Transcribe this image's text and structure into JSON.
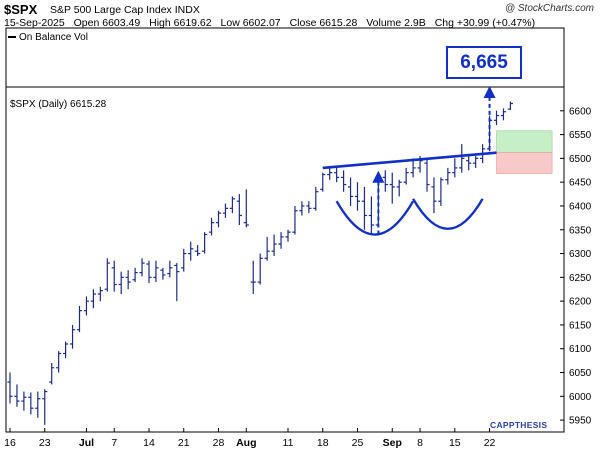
{
  "header": {
    "ticker": "$SPX",
    "company": "S&P 500 Large Cap Index",
    "exchange": "INDX",
    "source": "@ StockCharts.com",
    "date": "15-Sep-2025",
    "open": "Open 6603.49",
    "high": "High 6619.62",
    "low": "Low 6602.07",
    "close": "Close 6615.28",
    "volume": "Volume 2.9B",
    "chg": "Chg +30.99 (+0.47%)"
  },
  "indicator_label": "On Balance Vol",
  "legend_label": "$SPX (Daily) 6615.28",
  "callout_label": "6,665",
  "brand_label": "CAPPTHESIS",
  "colors": {
    "bars": "#1a2b8c",
    "annotation": "#1030c8",
    "green_zone": "#c6efc6",
    "red_zone": "#f8c9c9"
  },
  "chart_data": {
    "type": "ohlc",
    "ylim": [
      5925,
      6650
    ],
    "yticks": [
      5950,
      6000,
      6050,
      6100,
      6150,
      6200,
      6250,
      6300,
      6350,
      6400,
      6450,
      6500,
      6550,
      6600
    ],
    "xtick_labels": [
      {
        "label": "16",
        "day": 0
      },
      {
        "label": "23",
        "day": 5
      },
      {
        "label": "Jul",
        "day": 11
      },
      {
        "label": "7",
        "day": 15
      },
      {
        "label": "14",
        "day": 20
      },
      {
        "label": "21",
        "day": 25
      },
      {
        "label": "28",
        "day": 30
      },
      {
        "label": "Aug",
        "day": 34
      },
      {
        "label": "11",
        "day": 40
      },
      {
        "label": "18",
        "day": 45
      },
      {
        "label": "25",
        "day": 50
      },
      {
        "label": "Sep",
        "day": 55
      },
      {
        "label": "8",
        "day": 59
      },
      {
        "label": "15",
        "day": 64
      },
      {
        "label": "22",
        "day": 69
      }
    ],
    "bars": [
      {
        "day": 0,
        "o": 6030,
        "h": 6050,
        "l": 5985,
        "c": 6000
      },
      {
        "day": 1,
        "o": 6000,
        "h": 6025,
        "l": 5978,
        "c": 5990
      },
      {
        "day": 2,
        "o": 5990,
        "h": 6010,
        "l": 5970,
        "c": 5998
      },
      {
        "day": 3,
        "o": 5998,
        "h": 6008,
        "l": 5962,
        "c": 5975
      },
      {
        "day": 4,
        "o": 5975,
        "h": 6010,
        "l": 5955,
        "c": 5995
      },
      {
        "day": 5,
        "o": 5995,
        "h": 6015,
        "l": 5940,
        "c": 6010
      },
      {
        "day": 6,
        "o": 6030,
        "h": 6070,
        "l": 6025,
        "c": 6060
      },
      {
        "day": 7,
        "o": 6060,
        "h": 6095,
        "l": 6050,
        "c": 6090
      },
      {
        "day": 8,
        "o": 6090,
        "h": 6115,
        "l": 6080,
        "c": 6110
      },
      {
        "day": 9,
        "o": 6110,
        "h": 6150,
        "l": 6100,
        "c": 6140
      },
      {
        "day": 10,
        "o": 6140,
        "h": 6190,
        "l": 6135,
        "c": 6180
      },
      {
        "day": 11,
        "o": 6180,
        "h": 6210,
        "l": 6170,
        "c": 6200
      },
      {
        "day": 12,
        "o": 6200,
        "h": 6225,
        "l": 6185,
        "c": 6215
      },
      {
        "day": 13,
        "o": 6215,
        "h": 6230,
        "l": 6200,
        "c": 6222
      },
      {
        "day": 14,
        "o": 6225,
        "h": 6290,
        "l": 6220,
        "c": 6280
      },
      {
        "day": 15,
        "o": 6270,
        "h": 6285,
        "l": 6220,
        "c": 6235
      },
      {
        "day": 16,
        "o": 6235,
        "h": 6262,
        "l": 6215,
        "c": 6250
      },
      {
        "day": 17,
        "o": 6250,
        "h": 6265,
        "l": 6225,
        "c": 6240
      },
      {
        "day": 18,
        "o": 6245,
        "h": 6270,
        "l": 6240,
        "c": 6260
      },
      {
        "day": 19,
        "o": 6260,
        "h": 6290,
        "l": 6252,
        "c": 6280
      },
      {
        "day": 20,
        "o": 6278,
        "h": 6285,
        "l": 6238,
        "c": 6250
      },
      {
        "day": 21,
        "o": 6250,
        "h": 6285,
        "l": 6240,
        "c": 6270
      },
      {
        "day": 22,
        "o": 6265,
        "h": 6270,
        "l": 6245,
        "c": 6255
      },
      {
        "day": 23,
        "o": 6258,
        "h": 6285,
        "l": 6250,
        "c": 6270
      },
      {
        "day": 24,
        "o": 6275,
        "h": 6280,
        "l": 6200,
        "c": 6262
      },
      {
        "day": 25,
        "o": 6270,
        "h": 6310,
        "l": 6262,
        "c": 6300
      },
      {
        "day": 26,
        "o": 6300,
        "h": 6325,
        "l": 6285,
        "c": 6310
      },
      {
        "day": 27,
        "o": 6305,
        "h": 6318,
        "l": 6295,
        "c": 6300
      },
      {
        "day": 28,
        "o": 6305,
        "h": 6345,
        "l": 6300,
        "c": 6340
      },
      {
        "day": 29,
        "o": 6345,
        "h": 6375,
        "l": 6338,
        "c": 6365
      },
      {
        "day": 30,
        "o": 6365,
        "h": 6390,
        "l": 6355,
        "c": 6385
      },
      {
        "day": 31,
        "o": 6385,
        "h": 6405,
        "l": 6375,
        "c": 6395
      },
      {
        "day": 32,
        "o": 6395,
        "h": 6420,
        "l": 6385,
        "c": 6415
      },
      {
        "day": 33,
        "o": 6410,
        "h": 6425,
        "l": 6360,
        "c": 6380
      },
      {
        "day": 34,
        "o": 6365,
        "h": 6435,
        "l": 6355,
        "c": 6360
      },
      {
        "day": 35,
        "o": 6240,
        "h": 6285,
        "l": 6215,
        "c": 6240
      },
      {
        "day": 36,
        "o": 6240,
        "h": 6300,
        "l": 6235,
        "c": 6290
      },
      {
        "day": 37,
        "o": 6290,
        "h": 6335,
        "l": 6285,
        "c": 6305
      },
      {
        "day": 38,
        "o": 6305,
        "h": 6340,
        "l": 6295,
        "c": 6320
      },
      {
        "day": 39,
        "o": 6320,
        "h": 6345,
        "l": 6310,
        "c": 6335
      },
      {
        "day": 40,
        "o": 6335,
        "h": 6350,
        "l": 6325,
        "c": 6345
      },
      {
        "day": 41,
        "o": 6345,
        "h": 6400,
        "l": 6340,
        "c": 6390
      },
      {
        "day": 42,
        "o": 6390,
        "h": 6410,
        "l": 6380,
        "c": 6400
      },
      {
        "day": 43,
        "o": 6400,
        "h": 6410,
        "l": 6385,
        "c": 6395
      },
      {
        "day": 44,
        "o": 6395,
        "h": 6440,
        "l": 6390,
        "c": 6430
      },
      {
        "day": 45,
        "o": 6435,
        "h": 6470,
        "l": 6430,
        "c": 6466
      },
      {
        "day": 46,
        "o": 6466,
        "h": 6480,
        "l": 6455,
        "c": 6470
      },
      {
        "day": 47,
        "o": 6470,
        "h": 6482,
        "l": 6450,
        "c": 6460
      },
      {
        "day": 48,
        "o": 6460,
        "h": 6475,
        "l": 6430,
        "c": 6445
      },
      {
        "day": 49,
        "o": 6440,
        "h": 6460,
        "l": 6400,
        "c": 6420
      },
      {
        "day": 50,
        "o": 6420,
        "h": 6450,
        "l": 6390,
        "c": 6410
      },
      {
        "day": 51,
        "o": 6410,
        "h": 6440,
        "l": 6350,
        "c": 6380
      },
      {
        "day": 52,
        "o": 6380,
        "h": 6420,
        "l": 6340,
        "c": 6360
      },
      {
        "day": 53,
        "o": 6360,
        "h": 6470,
        "l": 6355,
        "c": 6460
      },
      {
        "day": 54,
        "o": 6460,
        "h": 6475,
        "l": 6430,
        "c": 6445
      },
      {
        "day": 55,
        "o": 6445,
        "h": 6470,
        "l": 6405,
        "c": 6440
      },
      {
        "day": 56,
        "o": 6440,
        "h": 6455,
        "l": 6420,
        "c": 6450
      },
      {
        "day": 57,
        "o": 6450,
        "h": 6480,
        "l": 6445,
        "c": 6470
      },
      {
        "day": 58,
        "o": 6470,
        "h": 6500,
        "l": 6460,
        "c": 6480
      },
      {
        "day": 59,
        "o": 6480,
        "h": 6505,
        "l": 6470,
        "c": 6495
      },
      {
        "day": 60,
        "o": 6490,
        "h": 6500,
        "l": 6430,
        "c": 6445
      },
      {
        "day": 61,
        "o": 6440,
        "h": 6460,
        "l": 6385,
        "c": 6410
      },
      {
        "day": 62,
        "o": 6410,
        "h": 6460,
        "l": 6400,
        "c": 6455
      },
      {
        "day": 63,
        "o": 6455,
        "h": 6480,
        "l": 6445,
        "c": 6470
      },
      {
        "day": 64,
        "o": 6470,
        "h": 6500,
        "l": 6460,
        "c": 6480
      },
      {
        "day": 65,
        "o": 6480,
        "h": 6530,
        "l": 6470,
        "c": 6500
      },
      {
        "day": 66,
        "o": 6495,
        "h": 6505,
        "l": 6475,
        "c": 6490
      },
      {
        "day": 67,
        "o": 6490,
        "h": 6505,
        "l": 6480,
        "c": 6500
      },
      {
        "day": 68,
        "o": 6500,
        "h": 6530,
        "l": 6490,
        "c": 6520
      },
      {
        "day": 69,
        "o": 6520,
        "h": 6590,
        "l": 6515,
        "c": 6580
      },
      {
        "day": 70,
        "o": 6580,
        "h": 6600,
        "l": 6570,
        "c": 6590
      },
      {
        "day": 71,
        "o": 6590,
        "h": 6605,
        "l": 6580,
        "c": 6598
      },
      {
        "day": 72,
        "o": 6603.49,
        "h": 6619.62,
        "l": 6602.07,
        "c": 6615.28
      }
    ],
    "annotations": {
      "resistance_line": [
        {
          "day": 45,
          "price": 6480
        },
        {
          "day": 70,
          "price": 6512
        }
      ],
      "target_arrow": {
        "day": 69,
        "from": 6518,
        "to": 6650
      },
      "head_arrow": {
        "day": 53,
        "from": 6340,
        "to": 6472
      },
      "green_zone": {
        "day_from": 70,
        "day_to": 78,
        "low": 6512,
        "high": 6558
      },
      "red_zone": {
        "day_from": 70,
        "day_to": 78,
        "low": 6468,
        "high": 6512
      },
      "left_cup": {
        "day_from": 47,
        "day_to": 58,
        "top": 6410,
        "bottom": 6340
      },
      "right_cup": {
        "day_from": 58,
        "day_to": 68,
        "top": 6415,
        "bottom": 6352
      }
    }
  }
}
